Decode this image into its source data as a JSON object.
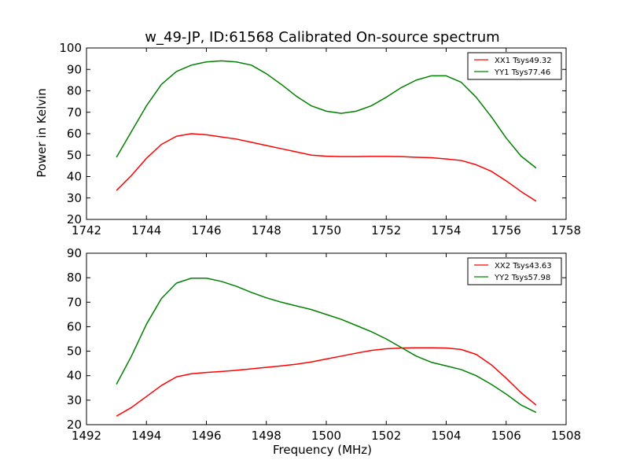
{
  "figure": {
    "title": "w_49-JP, ID:61568 Calibrated On-source spectrum",
    "ylabel": "Power in Kelvin",
    "xlabel": "Frequency (MHz)"
  },
  "chart_data": [
    {
      "type": "line",
      "title": "w_49-JP, ID:61568 Calibrated On-source spectrum",
      "ylabel": "Power in Kelvin",
      "xlabel": "",
      "xlim": [
        1742,
        1758
      ],
      "ylim": [
        20,
        100
      ],
      "xticks": [
        "1742",
        "1744",
        "1746",
        "1748",
        "1750",
        "1752",
        "1754",
        "1756",
        "1758"
      ],
      "yticks": [
        "20",
        "30",
        "40",
        "50",
        "60",
        "70",
        "80",
        "90",
        "100"
      ],
      "legend": "top-right",
      "series": [
        {
          "name": "XX1 Tsys49.32",
          "color": "#ff0000",
          "x": [
            1743.0,
            1743.5,
            1744.0,
            1744.5,
            1745.0,
            1745.5,
            1746.0,
            1746.5,
            1747.0,
            1747.5,
            1748.0,
            1748.5,
            1749.0,
            1749.5,
            1750.0,
            1750.5,
            1751.0,
            1751.5,
            1752.0,
            1752.5,
            1753.0,
            1753.5,
            1754.0,
            1754.5,
            1755.0,
            1755.5,
            1756.0,
            1756.5,
            1757.0
          ],
          "y": [
            33.5,
            40.5,
            48.5,
            55.0,
            58.8,
            60.0,
            59.5,
            58.5,
            57.5,
            56.0,
            54.5,
            53.0,
            51.5,
            50.0,
            49.5,
            49.3,
            49.3,
            49.4,
            49.4,
            49.3,
            49.0,
            48.8,
            48.2,
            47.5,
            45.5,
            42.5,
            38.0,
            33.0,
            28.5
          ]
        },
        {
          "name": "YY1 Tsys77.46",
          "color": "#008000",
          "x": [
            1743.0,
            1743.5,
            1744.0,
            1744.5,
            1745.0,
            1745.5,
            1746.0,
            1746.5,
            1747.0,
            1747.5,
            1748.0,
            1748.5,
            1749.0,
            1749.5,
            1750.0,
            1750.5,
            1751.0,
            1751.5,
            1752.0,
            1752.5,
            1753.0,
            1753.5,
            1754.0,
            1754.5,
            1755.0,
            1755.5,
            1756.0,
            1756.5,
            1757.0
          ],
          "y": [
            49.0,
            61.0,
            73.0,
            83.0,
            89.0,
            92.0,
            93.5,
            94.0,
            93.5,
            92.0,
            88.0,
            83.0,
            77.5,
            73.0,
            70.5,
            69.5,
            70.5,
            73.0,
            77.0,
            81.5,
            85.0,
            87.0,
            87.0,
            84.0,
            77.0,
            68.0,
            58.0,
            49.5,
            44.0
          ]
        }
      ]
    },
    {
      "type": "line",
      "title": "",
      "ylabel": "",
      "xlabel": "Frequency (MHz)",
      "xlim": [
        1492,
        1508
      ],
      "ylim": [
        20,
        90
      ],
      "xticks": [
        "1492",
        "1494",
        "1496",
        "1498",
        "1500",
        "1502",
        "1504",
        "1506",
        "1508"
      ],
      "yticks": [
        "20",
        "30",
        "40",
        "50",
        "60",
        "70",
        "80",
        "90"
      ],
      "legend": "top-right",
      "series": [
        {
          "name": "XX2 Tsys43.63",
          "color": "#ff0000",
          "x": [
            1493.0,
            1493.5,
            1494.0,
            1494.5,
            1495.0,
            1495.5,
            1496.0,
            1496.5,
            1497.0,
            1497.5,
            1498.0,
            1498.5,
            1499.0,
            1499.5,
            1500.0,
            1500.5,
            1501.0,
            1501.5,
            1502.0,
            1502.5,
            1503.0,
            1503.5,
            1504.0,
            1504.5,
            1505.0,
            1505.5,
            1506.0,
            1506.5,
            1507.0
          ],
          "y": [
            23.5,
            27.0,
            31.5,
            36.0,
            39.5,
            40.8,
            41.3,
            41.7,
            42.2,
            42.8,
            43.4,
            44.0,
            44.7,
            45.6,
            46.8,
            48.0,
            49.2,
            50.3,
            51.0,
            51.3,
            51.4,
            51.4,
            51.3,
            50.7,
            48.7,
            44.5,
            39.0,
            33.0,
            28.0
          ]
        },
        {
          "name": "YY2 Tsys57.98",
          "color": "#008000",
          "x": [
            1493.0,
            1493.5,
            1494.0,
            1494.5,
            1495.0,
            1495.5,
            1496.0,
            1496.5,
            1497.0,
            1497.5,
            1498.0,
            1498.5,
            1499.0,
            1499.5,
            1500.0,
            1500.5,
            1501.0,
            1501.5,
            1502.0,
            1502.5,
            1503.0,
            1503.5,
            1504.0,
            1504.5,
            1505.0,
            1505.5,
            1506.0,
            1506.5,
            1507.0
          ],
          "y": [
            36.5,
            48.0,
            61.0,
            71.5,
            77.8,
            79.8,
            79.8,
            78.5,
            76.5,
            74.0,
            71.8,
            70.0,
            68.5,
            67.0,
            65.0,
            63.0,
            60.5,
            58.0,
            55.0,
            51.5,
            48.0,
            45.5,
            44.0,
            42.5,
            40.0,
            36.5,
            32.5,
            28.0,
            25.0
          ]
        }
      ]
    }
  ]
}
